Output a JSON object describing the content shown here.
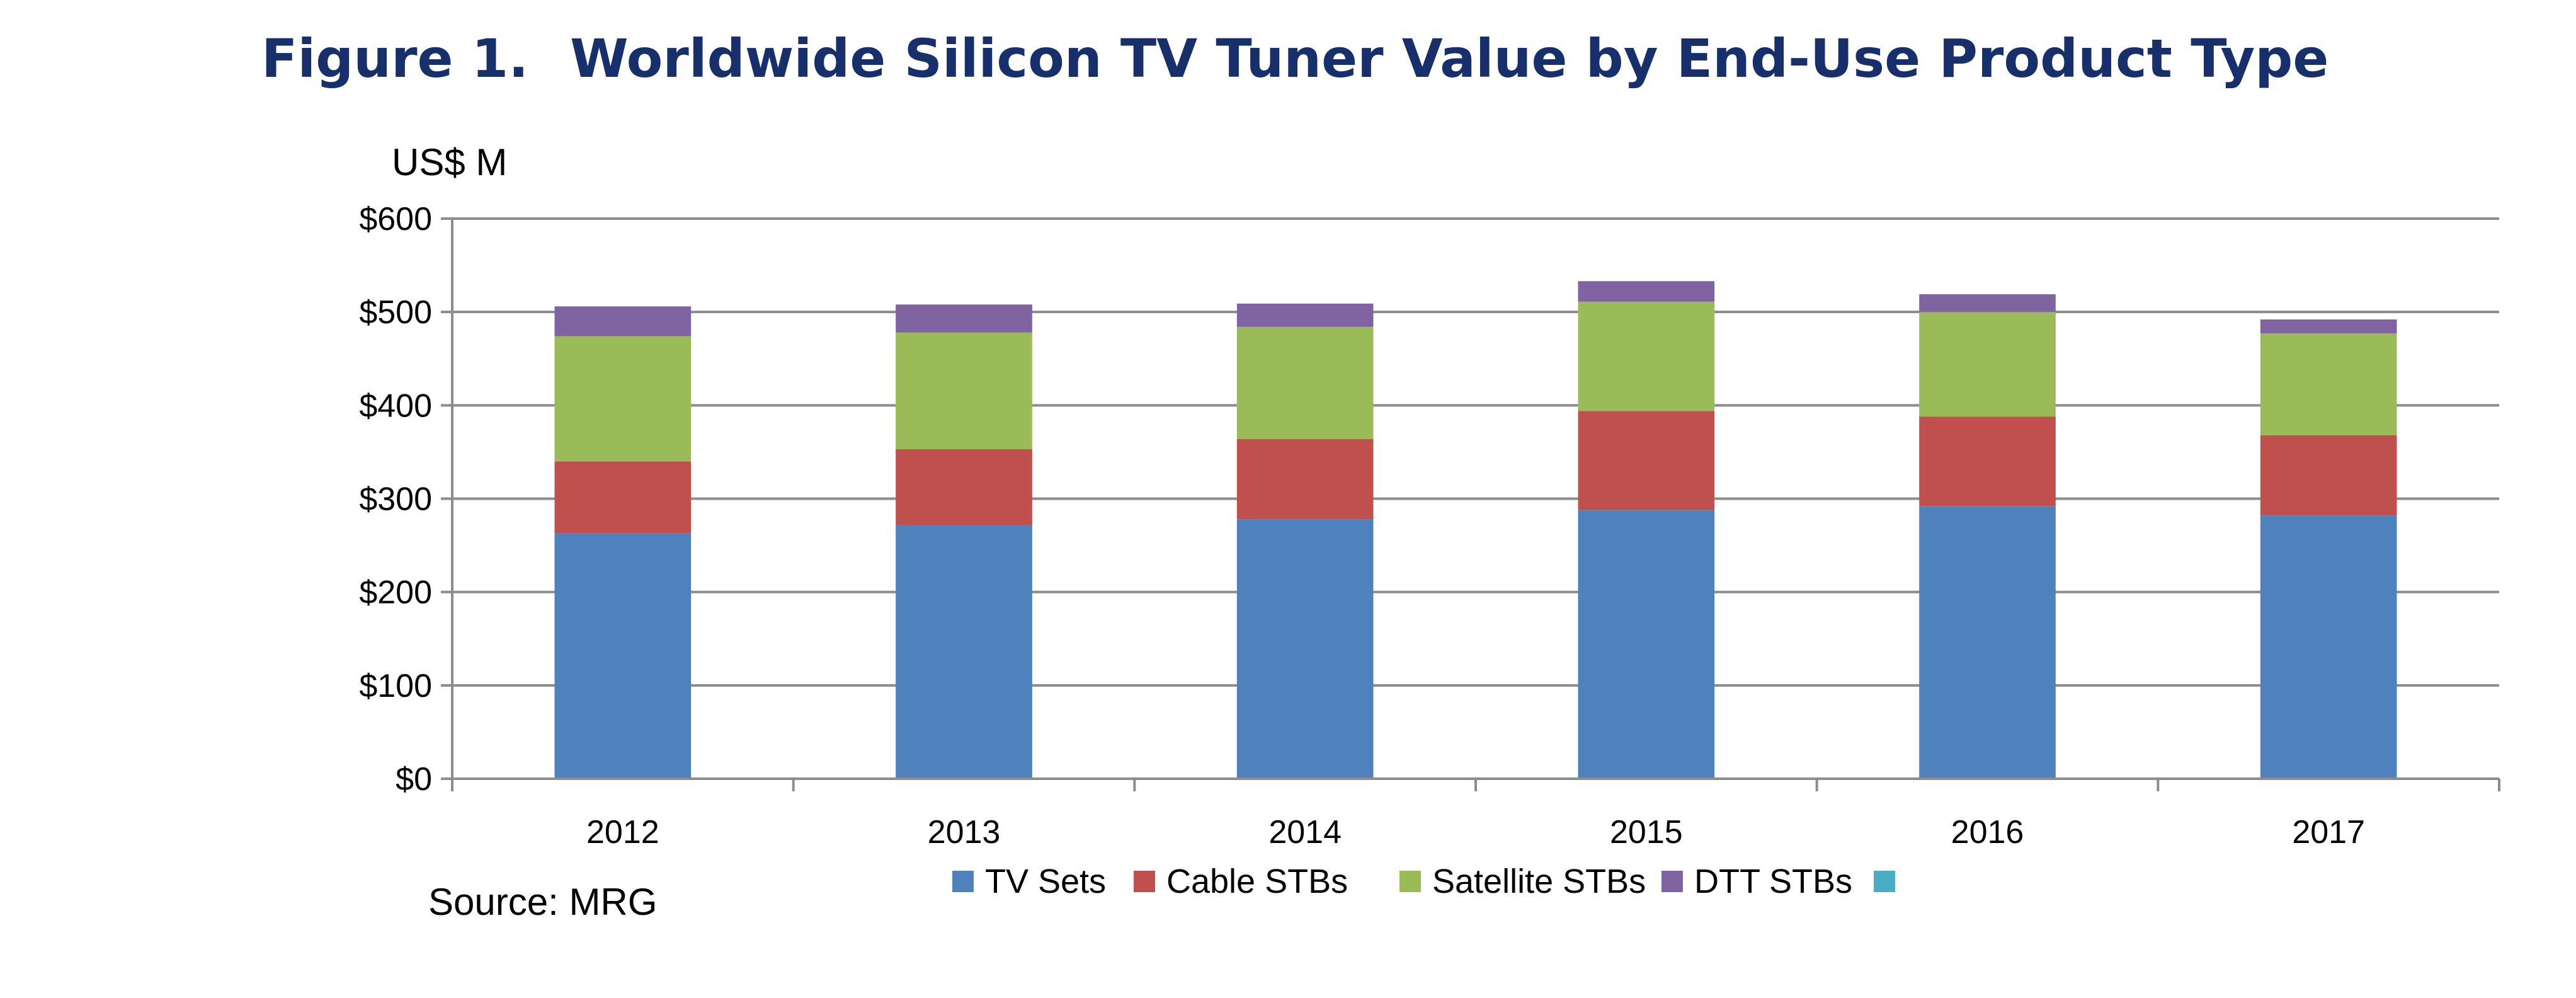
{
  "figure": {
    "number": "Figure 1.",
    "title": "Worldwide Silicon TV Tuner Value by End-Use Product Type"
  },
  "source": "Source: MRG",
  "chart_data": {
    "type": "bar",
    "stacked": true,
    "title": "Worldwide Silicon TV Tuner Value by End-Use Product Type",
    "ylabel": "US$ M",
    "xlabel": "",
    "ylim": [
      0,
      600
    ],
    "yticks": [
      "$0",
      "$100",
      "$200",
      "$300",
      "$400",
      "$500",
      "$600"
    ],
    "ytick_values": [
      0,
      100,
      200,
      300,
      400,
      500,
      600
    ],
    "grid": true,
    "legend_position": "bottom",
    "categories": [
      "2012",
      "2013",
      "2014",
      "2015",
      "2016",
      "2017"
    ],
    "series": [
      {
        "name": "TV Sets",
        "color": "#4f81bd",
        "values": [
          263,
          272,
          278,
          288,
          292,
          282
        ]
      },
      {
        "name": "Cable STBs",
        "color": "#c0504d",
        "values": [
          77,
          81,
          86,
          106,
          96,
          86
        ]
      },
      {
        "name": "Satellite STBs",
        "color": "#9bbb59",
        "values": [
          134,
          125,
          120,
          117,
          112,
          109
        ]
      },
      {
        "name": "DTT STBs",
        "color": "#8064a2",
        "values": [
          32,
          30,
          25,
          22,
          19,
          15
        ]
      },
      {
        "name": "",
        "color": "#4bacc6",
        "values": [
          0,
          0,
          0,
          0,
          0,
          0
        ]
      }
    ]
  }
}
